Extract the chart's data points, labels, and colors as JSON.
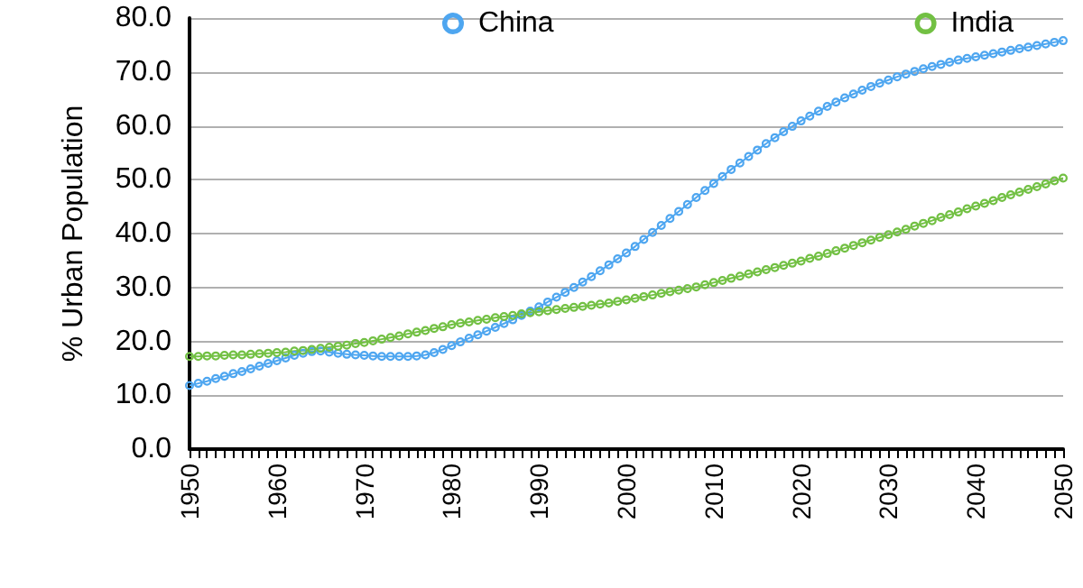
{
  "chart_data": {
    "type": "line",
    "ylabel": "% Urban Population",
    "x": [
      1950,
      1951,
      1952,
      1953,
      1954,
      1955,
      1956,
      1957,
      1958,
      1959,
      1960,
      1961,
      1962,
      1963,
      1964,
      1965,
      1966,
      1967,
      1968,
      1969,
      1970,
      1971,
      1972,
      1973,
      1974,
      1975,
      1976,
      1977,
      1978,
      1979,
      1980,
      1981,
      1982,
      1983,
      1984,
      1985,
      1986,
      1987,
      1988,
      1989,
      1990,
      1991,
      1992,
      1993,
      1994,
      1995,
      1996,
      1997,
      1998,
      1999,
      2000,
      2001,
      2002,
      2003,
      2004,
      2005,
      2006,
      2007,
      2008,
      2009,
      2010,
      2011,
      2012,
      2013,
      2014,
      2015,
      2016,
      2017,
      2018,
      2019,
      2020,
      2021,
      2022,
      2023,
      2024,
      2025,
      2026,
      2027,
      2028,
      2029,
      2030,
      2031,
      2032,
      2033,
      2034,
      2035,
      2036,
      2037,
      2038,
      2039,
      2040,
      2041,
      2042,
      2043,
      2044,
      2045,
      2046,
      2047,
      2048,
      2049,
      2050
    ],
    "series": [
      {
        "name": "China",
        "color": "#4ea6f0",
        "values": [
          11.8,
          12.2,
          12.6,
          13.1,
          13.5,
          14.0,
          14.4,
          14.9,
          15.4,
          15.9,
          16.4,
          16.9,
          17.4,
          17.8,
          18.1,
          18.2,
          18.0,
          17.8,
          17.6,
          17.5,
          17.4,
          17.3,
          17.2,
          17.2,
          17.2,
          17.2,
          17.3,
          17.5,
          17.9,
          18.5,
          19.2,
          19.9,
          20.6,
          21.2,
          21.9,
          22.6,
          23.3,
          24.0,
          24.8,
          25.6,
          26.4,
          27.3,
          28.2,
          29.1,
          30.0,
          31.0,
          32.0,
          33.1,
          34.2,
          35.3,
          36.4,
          37.6,
          38.9,
          40.2,
          41.5,
          42.8,
          44.1,
          45.4,
          46.7,
          48.0,
          49.3,
          50.6,
          51.9,
          53.1,
          54.3,
          55.5,
          56.7,
          57.8,
          58.9,
          59.9,
          60.9,
          61.8,
          62.7,
          63.6,
          64.4,
          65.2,
          65.9,
          66.6,
          67.3,
          67.9,
          68.5,
          69.1,
          69.6,
          70.1,
          70.6,
          71.0,
          71.4,
          71.8,
          72.2,
          72.5,
          72.8,
          73.1,
          73.4,
          73.7,
          74.0,
          74.3,
          74.6,
          74.9,
          75.2,
          75.5,
          75.8
        ]
      },
      {
        "name": "India",
        "color": "#72c043",
        "values": [
          17.2,
          17.2,
          17.3,
          17.3,
          17.4,
          17.5,
          17.5,
          17.6,
          17.7,
          17.8,
          17.9,
          18.0,
          18.2,
          18.3,
          18.5,
          18.7,
          18.9,
          19.1,
          19.3,
          19.6,
          19.8,
          20.1,
          20.4,
          20.7,
          21.0,
          21.4,
          21.7,
          22.0,
          22.4,
          22.7,
          23.1,
          23.4,
          23.6,
          23.9,
          24.1,
          24.4,
          24.6,
          24.8,
          25.1,
          25.3,
          25.5,
          25.7,
          25.9,
          26.1,
          26.3,
          26.5,
          26.7,
          26.9,
          27.1,
          27.4,
          27.7,
          28.0,
          28.3,
          28.6,
          28.9,
          29.2,
          29.5,
          29.8,
          30.1,
          30.5,
          30.9,
          31.3,
          31.7,
          32.1,
          32.5,
          32.9,
          33.3,
          33.7,
          34.1,
          34.5,
          34.9,
          35.4,
          35.8,
          36.3,
          36.8,
          37.3,
          37.8,
          38.3,
          38.8,
          39.3,
          39.8,
          40.3,
          40.8,
          41.4,
          41.9,
          42.4,
          43.0,
          43.5,
          44.0,
          44.6,
          45.1,
          45.6,
          46.1,
          46.7,
          47.2,
          47.7,
          48.2,
          48.7,
          49.2,
          49.8,
          50.3
        ]
      }
    ],
    "xlim": [
      1950,
      2050
    ],
    "xticks": [
      1950,
      1960,
      1970,
      1980,
      1990,
      2000,
      2010,
      2020,
      2030,
      2040,
      2050
    ],
    "ylim": [
      0,
      80
    ],
    "yticks": [
      {
        "value": 0,
        "label": "0.0"
      },
      {
        "value": 10,
        "label": "10.0"
      },
      {
        "value": 20,
        "label": "20.0"
      },
      {
        "value": 30,
        "label": "30.0"
      },
      {
        "value": 40,
        "label": "40.0"
      },
      {
        "value": 50,
        "label": "50.0"
      },
      {
        "value": 60,
        "label": "60.0"
      },
      {
        "value": 70,
        "label": "70.0"
      },
      {
        "value": 80,
        "label": "80.0"
      }
    ],
    "grid": "y",
    "legend": "top",
    "marker": "circle",
    "line_style": "solid"
  }
}
